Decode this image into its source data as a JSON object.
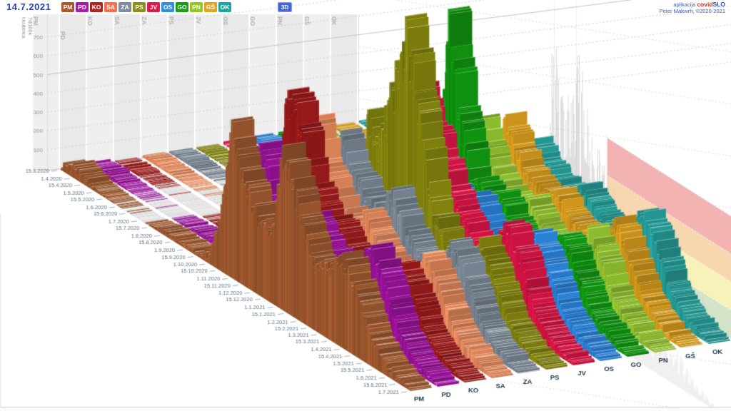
{
  "header": {
    "date": "14.7.2021",
    "mode3d": "3D",
    "app_prefix": "aplikacija",
    "brand_covid": "covid",
    "brand_slo": "SLO",
    "credit": "Peter Malovrh, ©2020-2021"
  },
  "chart_data": {
    "type": "area",
    "projection": "3d-ridges",
    "title": "",
    "value_axis_label_line1": "7d/100k",
    "value_axis_label_line2": "incidenca",
    "yticks": [
      100,
      200,
      300,
      400,
      500,
      600,
      700
    ],
    "ylim": [
      0,
      750
    ],
    "grid": "dashed, 500-line solid",
    "legend_position": "top header buttons",
    "total_days": 473,
    "keyframe_days": [
      0,
      20,
      45,
      75,
      110,
      135,
      160,
      185,
      200,
      215,
      231,
      245,
      262,
      285,
      300,
      320,
      340,
      365,
      382,
      400,
      420,
      445,
      473
    ],
    "series": [
      {
        "name": "PM",
        "button_color": "#a9572b",
        "color": "#a45c31",
        "values": [
          30,
          45,
          15,
          4,
          2,
          15,
          22,
          15,
          45,
          280,
          800,
          560,
          420,
          380,
          820,
          600,
          350,
          380,
          460,
          350,
          150,
          45,
          8
        ]
      },
      {
        "name": "PD",
        "button_color": "#a81ca8",
        "color": "#a314a3",
        "values": [
          12,
          22,
          8,
          3,
          2,
          12,
          20,
          18,
          50,
          220,
          680,
          520,
          400,
          350,
          450,
          340,
          300,
          360,
          500,
          380,
          165,
          50,
          8
        ]
      },
      {
        "name": "KO",
        "button_color": "#ad2424",
        "color": "#a31c1c",
        "values": [
          5,
          12,
          5,
          2,
          1,
          8,
          15,
          12,
          45,
          260,
          850,
          900,
          520,
          380,
          380,
          280,
          240,
          280,
          380,
          300,
          130,
          40,
          6
        ]
      },
      {
        "name": "SA",
        "button_color": "#f4714b",
        "color": "#ef8f60",
        "values": [
          8,
          18,
          8,
          3,
          2,
          10,
          18,
          15,
          50,
          230,
          700,
          540,
          400,
          340,
          420,
          300,
          250,
          290,
          400,
          310,
          140,
          45,
          7
        ]
      },
      {
        "name": "ZA",
        "button_color": "#7e8ea0",
        "color": "#7d8b99",
        "values": [
          10,
          15,
          6,
          2,
          1,
          6,
          12,
          10,
          40,
          190,
          640,
          500,
          430,
          380,
          520,
          360,
          280,
          320,
          450,
          340,
          150,
          45,
          6
        ]
      },
      {
        "name": "PS",
        "button_color": "#8f8f15",
        "color": "#8a8a10",
        "values": [
          6,
          10,
          4,
          2,
          1,
          10,
          16,
          12,
          45,
          200,
          700,
          600,
          900,
          1300,
          900,
          450,
          300,
          320,
          430,
          320,
          140,
          40,
          6
        ]
      },
      {
        "name": "JV",
        "button_color": "#e41a4e",
        "color": "#e01648",
        "values": [
          8,
          14,
          6,
          2,
          1,
          8,
          15,
          12,
          40,
          180,
          650,
          560,
          860,
          700,
          550,
          400,
          320,
          360,
          500,
          380,
          160,
          50,
          8
        ]
      },
      {
        "name": "OS",
        "button_color": "#2f8fe6",
        "color": "#2e8ce8",
        "values": [
          15,
          25,
          10,
          3,
          2,
          15,
          25,
          20,
          55,
          210,
          560,
          470,
          400,
          350,
          430,
          310,
          270,
          310,
          430,
          330,
          150,
          50,
          8
        ]
      },
      {
        "name": "GO",
        "button_color": "#13a113",
        "color": "#12a012",
        "values": [
          12,
          22,
          10,
          3,
          2,
          10,
          20,
          15,
          50,
          240,
          1180,
          700,
          430,
          350,
          400,
          290,
          250,
          290,
          400,
          310,
          140,
          45,
          7
        ]
      },
      {
        "name": "PN",
        "button_color": "#93c722",
        "color": "#97c932",
        "values": [
          5,
          8,
          3,
          1,
          1,
          5,
          10,
          8,
          35,
          160,
          620,
          470,
          360,
          300,
          380,
          280,
          240,
          280,
          400,
          300,
          130,
          40,
          5
        ]
      },
      {
        "name": "GŠ",
        "button_color": "#e2a419",
        "color": "#dfa21e",
        "values": [
          6,
          10,
          4,
          2,
          1,
          8,
          14,
          10,
          30,
          150,
          600,
          500,
          400,
          330,
          400,
          300,
          260,
          300,
          420,
          320,
          140,
          45,
          6
        ]
      },
      {
        "name": "OK",
        "button_color": "#1ba8a4",
        "color": "#28a5a0",
        "values": [
          8,
          12,
          5,
          2,
          1,
          12,
          20,
          15,
          35,
          130,
          450,
          390,
          340,
          310,
          380,
          300,
          280,
          330,
          460,
          360,
          160,
          50,
          7
        ]
      }
    ],
    "background_total": {
      "color": "#9b9b9b",
      "values": [
        8,
        15,
        6,
        2,
        1,
        8,
        18,
        15,
        45,
        190,
        1150,
        750,
        1120,
        650,
        520,
        380,
        330,
        420,
        480,
        380,
        180,
        60,
        10
      ]
    },
    "time_labels": [
      {
        "label": "15.3.2020",
        "day": 0
      },
      {
        "label": "1.4.2020",
        "day": 17
      },
      {
        "label": "15.4.2020",
        "day": 31
      },
      {
        "label": "1.5.2020",
        "day": 47
      },
      {
        "label": "15.5.2020",
        "day": 61
      },
      {
        "label": "1.6.2020",
        "day": 78
      },
      {
        "label": "15.6.2020",
        "day": 92
      },
      {
        "label": "1.7.2020",
        "day": 108
      },
      {
        "label": "15.7.2020",
        "day": 122
      },
      {
        "label": "1.8.2020",
        "day": 139
      },
      {
        "label": "15.8.2020",
        "day": 153
      },
      {
        "label": "1.9.2020",
        "day": 170
      },
      {
        "label": "15.9.2020",
        "day": 184
      },
      {
        "label": "1.10.2020",
        "day": 200
      },
      {
        "label": "15.10.2020",
        "day": 214
      },
      {
        "label": "1.11.2020",
        "day": 231
      },
      {
        "label": "15.11.2020",
        "day": 245
      },
      {
        "label": "1.12.2020",
        "day": 261
      },
      {
        "label": "15.12.2020",
        "day": 275
      },
      {
        "label": "1.1.2021",
        "day": 292
      },
      {
        "label": "15.1.2021",
        "day": 306
      },
      {
        "label": "1.2.2021",
        "day": 323
      },
      {
        "label": "15.2.2021",
        "day": 337
      },
      {
        "label": "1.3.2021",
        "day": 351
      },
      {
        "label": "15.3.2021",
        "day": 365
      },
      {
        "label": "1.4.2021",
        "day": 382
      },
      {
        "label": "15.4.2021",
        "day": 396
      },
      {
        "label": "1.5.2021",
        "day": 412
      },
      {
        "label": "15.5.2021",
        "day": 426
      },
      {
        "label": "1.6.2021",
        "day": 443
      },
      {
        "label": "15.6.2021",
        "day": 457
      },
      {
        "label": "1.7.2021",
        "day": 473
      }
    ],
    "risk_bands": [
      {
        "color": "#cfe0c0",
        "from": 0,
        "to": 150
      },
      {
        "color": "#f6f0b0",
        "from": 150,
        "to": 300
      },
      {
        "color": "#f6d2a4",
        "from": 300,
        "to": 450
      },
      {
        "color": "#f3a8a8",
        "from": 450,
        "to": 650
      }
    ],
    "style": {
      "wall_band_even": "#efefef",
      "wall_band_odd": "#e9e9e9",
      "grid_color": "#cfcfcf",
      "grid_solid_value": 500,
      "low_value_color": "#d7d7d7",
      "label_color": "#5f7282",
      "tick_color": "#999999",
      "column_label_color": "#b4b4b4",
      "front_label_color": "#16324a"
    }
  }
}
